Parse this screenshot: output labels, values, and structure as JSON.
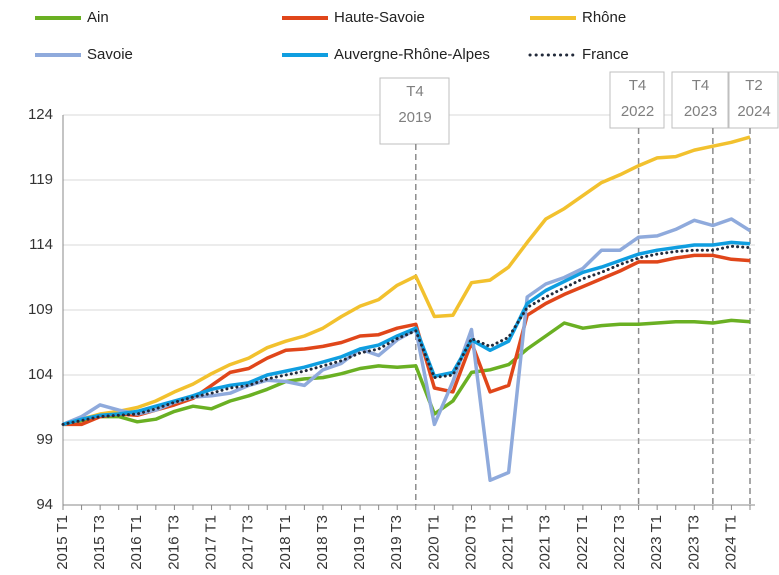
{
  "chart_data": {
    "type": "line",
    "categories": [
      "2015 T1",
      null,
      "2015 T3",
      null,
      "2016 T1",
      null,
      "2016 T3",
      null,
      "2017 T1",
      null,
      "2017 T3",
      null,
      "2018 T1",
      null,
      "2018 T3",
      null,
      "2019 T1",
      null,
      "2019 T3",
      null,
      "2020 T1",
      null,
      "2020 T3",
      null,
      "2021 T1",
      null,
      "2021 T3",
      null,
      "2022 T1",
      null,
      "2022 T3",
      null,
      "2023 T1",
      null,
      "2023 T3",
      null,
      "2024 T1",
      null
    ],
    "series": [
      {
        "name": "Ain",
        "color": "#6ab023",
        "values": [
          100.2,
          100.5,
          100.8,
          100.8,
          100.4,
          100.6,
          101.2,
          101.6,
          101.4,
          102.0,
          102.4,
          102.9,
          103.5,
          103.7,
          103.8,
          104.1,
          104.5,
          104.7,
          104.6,
          104.7,
          101.0,
          102.0,
          104.2,
          104.4,
          104.8,
          106.0,
          107.0,
          108.0,
          107.6,
          107.8,
          107.9,
          107.9,
          108.0,
          108.1,
          108.1,
          108.0,
          108.2,
          108.1
        ]
      },
      {
        "name": "Haute-Savoie",
        "color": "#e0461a",
        "values": [
          100.2,
          100.2,
          100.8,
          101.0,
          100.9,
          101.3,
          101.7,
          102.2,
          103.2,
          104.2,
          104.5,
          105.3,
          105.9,
          106.0,
          106.2,
          106.5,
          107.0,
          107.1,
          107.6,
          107.9,
          103.0,
          102.7,
          106.5,
          102.7,
          103.2,
          108.6,
          109.5,
          110.2,
          110.8,
          111.4,
          112.0,
          112.7,
          112.7,
          113.0,
          113.2,
          113.2,
          112.9,
          112.8
        ]
      },
      {
        "name": "Rhône",
        "color": "#f2c12e",
        "values": [
          100.2,
          100.6,
          101.0,
          101.2,
          101.5,
          102.0,
          102.7,
          103.3,
          104.1,
          104.8,
          105.3,
          106.1,
          106.6,
          107.0,
          107.6,
          108.5,
          109.3,
          109.8,
          110.9,
          111.6,
          108.5,
          108.6,
          111.1,
          111.3,
          112.3,
          114.2,
          116.0,
          116.8,
          117.8,
          118.8,
          119.4,
          120.1,
          120.7,
          120.8,
          121.3,
          121.6,
          121.9,
          122.3
        ]
      },
      {
        "name": "Savoie",
        "color": "#8faadc",
        "values": [
          100.2,
          100.8,
          101.7,
          101.3,
          101.0,
          101.3,
          101.9,
          102.3,
          102.4,
          102.6,
          103.2,
          103.6,
          103.5,
          103.2,
          104.4,
          104.9,
          106.0,
          105.5,
          106.7,
          107.5,
          100.2,
          103.5,
          107.5,
          95.9,
          96.5,
          110.0,
          111.0,
          111.5,
          112.2,
          113.6,
          113.6,
          114.6,
          114.7,
          115.2,
          115.9,
          115.5,
          116.0,
          115.1
        ]
      },
      {
        "name": "Auvergne-Rhône-Alpes",
        "color": "#0f9ee0",
        "values": [
          100.2,
          100.6,
          100.9,
          101.0,
          101.2,
          101.6,
          102.0,
          102.4,
          102.9,
          103.2,
          103.4,
          104.0,
          104.3,
          104.6,
          105.0,
          105.4,
          106.0,
          106.3,
          107.0,
          107.6,
          103.9,
          104.2,
          106.7,
          105.9,
          106.6,
          109.5,
          110.5,
          111.2,
          111.9,
          112.3,
          112.8,
          113.3,
          113.6,
          113.8,
          114.0,
          114.0,
          114.2,
          114.1
        ]
      },
      {
        "name": "France",
        "color": "#222a3a",
        "dash": "dotted",
        "values": [
          100.2,
          100.5,
          100.8,
          100.9,
          101.0,
          101.4,
          101.9,
          102.3,
          102.6,
          103.0,
          103.2,
          103.7,
          104.0,
          104.3,
          104.7,
          105.1,
          105.7,
          106.0,
          106.8,
          107.4,
          103.8,
          104.0,
          106.8,
          106.2,
          106.9,
          109.2,
          110.0,
          110.7,
          111.4,
          111.9,
          112.5,
          113.0,
          113.3,
          113.5,
          113.6,
          113.6,
          113.9,
          113.8
        ]
      }
    ],
    "ylim": [
      94,
      124
    ],
    "yticks": [
      94,
      99,
      104,
      109,
      114,
      119,
      124
    ],
    "grid": true,
    "legend": "top",
    "annotations": [
      {
        "index": 19,
        "lines": [
          "T4",
          "2019"
        ]
      },
      {
        "index": 31,
        "lines": [
          "T4",
          "2022"
        ]
      },
      {
        "index": 35,
        "lines": [
          "T4",
          "2023"
        ]
      },
      {
        "index": 37,
        "lines": [
          "T2",
          "2024"
        ]
      }
    ]
  }
}
